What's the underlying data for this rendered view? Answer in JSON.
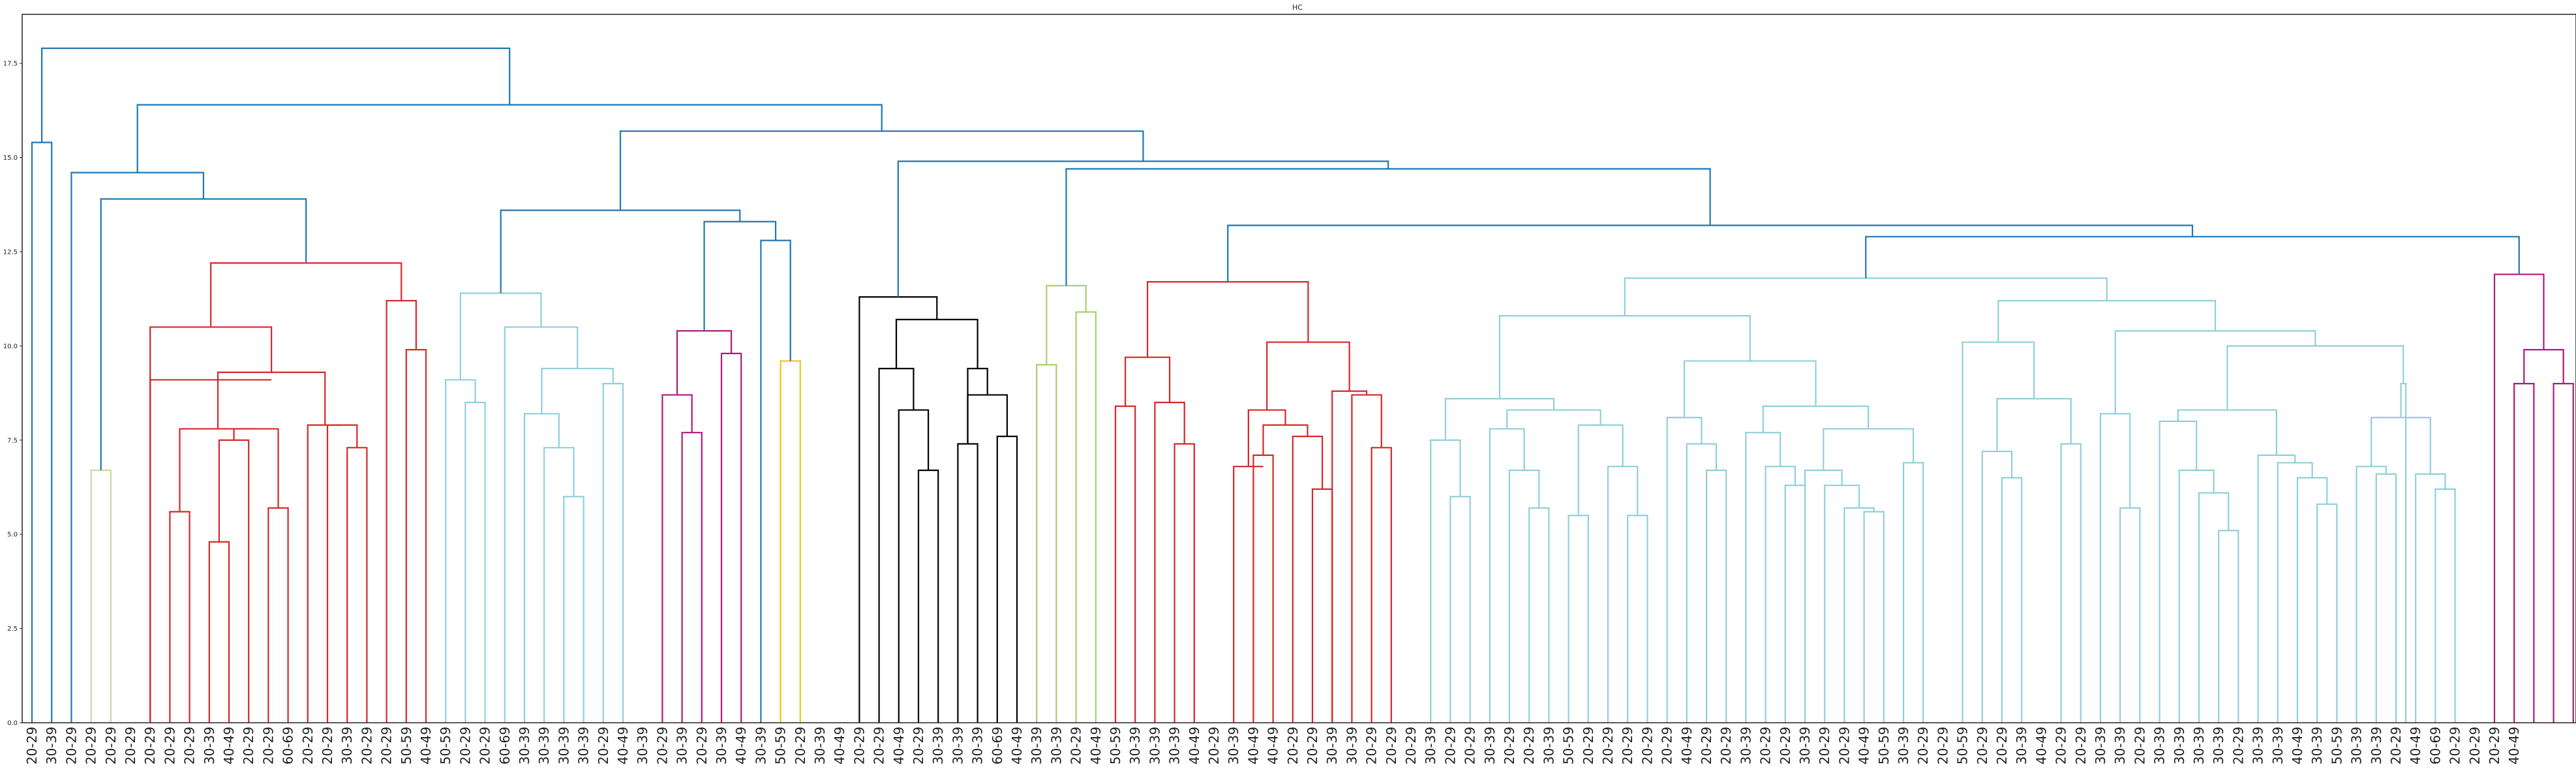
{
  "chart_data": {
    "type": "dendrogram",
    "title": "HC",
    "xlabel": "",
    "ylabel": "",
    "ylim": [
      0,
      18.8
    ],
    "yticks": [
      0.0,
      2.5,
      5.0,
      7.5,
      10.0,
      12.5,
      15.0,
      17.5
    ],
    "ytick_labels": [
      "0.0",
      "2.5",
      "5.0",
      "7.5",
      "10.0",
      "12.5",
      "15.0",
      "17.5"
    ],
    "grid": false,
    "colors": {
      "above": "#1f77b4",
      "red": "#d62728",
      "light": "#90cfdc",
      "magenta": "#b0197e",
      "gold": "#f0c419",
      "black": "#000000",
      "olive": "#c9d8a4",
      "green": "#a7cf6c"
    },
    "leaves": [
      "20-29",
      "30-39",
      "20-29",
      "20-29",
      "20-29",
      "20-29",
      "20-29",
      "20-29",
      "20-29",
      "30-39",
      "40-49",
      "20-29",
      "20-29",
      "60-69",
      "20-29",
      "20-29",
      "30-39",
      "20-29",
      "20-29",
      "50-59",
      "40-49",
      "50-59",
      "20-29",
      "20-29",
      "60-69",
      "30-39",
      "30-39",
      "30-39",
      "30-39",
      "20-29",
      "40-49",
      "30-39",
      "20-29",
      "30-39",
      "20-29",
      "30-39",
      "40-49",
      "30-39",
      "50-59",
      "20-29",
      "30-39",
      "40-49",
      "20-29",
      "20-29",
      "40-49",
      "20-29",
      "30-39",
      "30-39",
      "30-39",
      "60-69",
      "40-49",
      "30-39",
      "30-39",
      "20-29",
      "40-49",
      "50-59",
      "30-39",
      "30-39",
      "30-39",
      "40-49",
      "20-29",
      "30-39",
      "40-49",
      "40-49",
      "20-29",
      "20-29",
      "30-39",
      "30-39",
      "20-29",
      "20-29",
      "20-29",
      "30-39",
      "20-29",
      "20-29",
      "30-39",
      "20-29",
      "20-29",
      "30-39",
      "50-59",
      "20-29",
      "20-29",
      "20-29",
      "20-29",
      "20-29",
      "40-49",
      "20-29",
      "20-29",
      "30-39",
      "20-29",
      "20-29",
      "30-39",
      "20-29",
      "20-29",
      "40-49",
      "50-59",
      "30-39",
      "20-29",
      "20-29",
      "50-59",
      "20-29",
      "20-29",
      "30-39",
      "40-49",
      "20-29",
      "20-29",
      "30-39",
      "30-39",
      "20-29",
      "30-39",
      "30-39",
      "30-39",
      "30-39",
      "20-29",
      "30-39",
      "30-39",
      "40-49",
      "30-39",
      "50-59",
      "30-39",
      "30-39",
      "20-29",
      "40-49",
      "60-69",
      "20-29",
      "20-29",
      "20-29",
      "40-49"
    ],
    "links": [
      {
        "x1": 1,
        "x2": 2,
        "h": 15.4,
        "c": "above"
      },
      {
        "x1": 4,
        "x2": 5,
        "h": 6.7,
        "c": "olive"
      },
      {
        "x1": 8,
        "x2": 9,
        "h": 5.6,
        "c": "red"
      },
      {
        "x1": 10,
        "x2": 11,
        "h": 4.8,
        "c": "red"
      },
      {
        "x1": 10.5,
        "x2": 12,
        "h": 7.5,
        "c": "red"
      },
      {
        "x1": 13,
        "x2": 14,
        "h": 5.7,
        "c": "red"
      },
      {
        "x1": 11.25,
        "x2": 13.5,
        "h": 7.8,
        "c": "red"
      },
      {
        "x1": 17,
        "x2": 18,
        "h": 7.3,
        "c": "red"
      },
      {
        "x1": 16,
        "x2": 17.5,
        "h": 7.9,
        "c": "red"
      },
      {
        "x1": 8.5,
        "x2": 12.375,
        "h": 7.8,
        "c": "red"
      },
      {
        "x1": 15,
        "x2": 16.75,
        "h": 7.9,
        "c": "red"
      },
      {
        "x1": 10.4375,
        "x2": 15.875,
        "h": 9.3,
        "c": "red"
      },
      {
        "x1": 7,
        "x2": 13.15625,
        "h": 9.1,
        "c": "red"
      },
      {
        "x1": 7,
        "x2": 13.15625,
        "h": 10.5,
        "c": "red"
      },
      {
        "x1": 20,
        "x2": 21,
        "h": 9.9,
        "c": "red"
      },
      {
        "x1": 19,
        "x2": 20.5,
        "h": 11.2,
        "c": "red"
      },
      {
        "x1": 10.078125,
        "x2": 19.75,
        "h": 12.2,
        "c": "red"
      },
      {
        "x1": 4.5,
        "x2": 14.9140625,
        "h": 13.9,
        "c": "above"
      },
      {
        "x1": 3,
        "x2": 9.70703125,
        "h": 14.6,
        "c": "above"
      },
      {
        "x1": 23,
        "x2": 24,
        "h": 8.5,
        "c": "light"
      },
      {
        "x1": 22,
        "x2": 23.5,
        "h": 9.1,
        "c": "light"
      },
      {
        "x1": 28,
        "x2": 29,
        "h": 6.0,
        "c": "light"
      },
      {
        "x1": 27,
        "x2": 28.5,
        "h": 7.3,
        "c": "light"
      },
      {
        "x1": 26,
        "x2": 27.75,
        "h": 8.2,
        "c": "light"
      },
      {
        "x1": 30,
        "x2": 31,
        "h": 9.0,
        "c": "light"
      },
      {
        "x1": 26.875,
        "x2": 30.5,
        "h": 9.4,
        "c": "light"
      },
      {
        "x1": 25,
        "x2": 28.6875,
        "h": 10.5,
        "c": "light"
      },
      {
        "x1": 22.75,
        "x2": 26.84375,
        "h": 11.4,
        "c": "light"
      },
      {
        "x1": 34,
        "x2": 35,
        "h": 7.7,
        "c": "magenta"
      },
      {
        "x1": 33,
        "x2": 34.5,
        "h": 8.7,
        "c": "magenta"
      },
      {
        "x1": 36,
        "x2": 37,
        "h": 9.8,
        "c": "magenta"
      },
      {
        "x1": 33.75,
        "x2": 36.5,
        "h": 10.4,
        "c": "magenta"
      },
      {
        "x1": 39,
        "x2": 40,
        "h": 9.6,
        "c": "gold"
      },
      {
        "x1": 38,
        "x2": 39.5,
        "h": 12.8,
        "c": "above"
      },
      {
        "x1": 35.125,
        "x2": 38.75,
        "h": 13.3,
        "c": "above"
      },
      {
        "x1": 24.796875,
        "x2": 36.9375,
        "h": 13.6,
        "c": "above"
      },
      {
        "x1": 46,
        "x2": 47,
        "h": 6.7,
        "c": "black"
      },
      {
        "x1": 45,
        "x2": 46.5,
        "h": 8.3,
        "c": "black"
      },
      {
        "x1": 44,
        "x2": 45.75,
        "h": 9.4,
        "c": "black"
      },
      {
        "x1": 48,
        "x2": 49,
        "h": 7.4,
        "c": "black"
      },
      {
        "x1": 50,
        "x2": 51,
        "h": 7.6,
        "c": "black"
      },
      {
        "x1": 48.5,
        "x2": 50.5,
        "h": 8.7,
        "c": "black"
      },
      {
        "x1": 48.5,
        "x2": 49.5,
        "h": 9.4,
        "c": "black"
      },
      {
        "x1": 44.875,
        "x2": 49,
        "h": 10.7,
        "c": "black"
      },
      {
        "x1": 43,
        "x2": 46.9375,
        "h": 11.3,
        "c": "black"
      },
      {
        "x1": 52,
        "x2": 53,
        "h": 9.5,
        "c": "green"
      },
      {
        "x1": 54,
        "x2": 55,
        "h": 10.9,
        "c": "green"
      },
      {
        "x1": 52.5,
        "x2": 54.5,
        "h": 11.6,
        "c": "green"
      },
      {
        "x1": 56,
        "x2": 57,
        "h": 8.4,
        "c": "red"
      },
      {
        "x1": 59,
        "x2": 60,
        "h": 7.4,
        "c": "red"
      },
      {
        "x1": 58,
        "x2": 59.5,
        "h": 8.5,
        "c": "red"
      },
      {
        "x1": 56.5,
        "x2": 58.75,
        "h": 9.7,
        "c": "red"
      },
      {
        "x1": 63,
        "x2": 64,
        "h": 7.1,
        "c": "red"
      },
      {
        "x1": 62,
        "x2": 63.5,
        "h": 6.8,
        "c": "red"
      },
      {
        "x1": 66,
        "x2": 67,
        "h": 6.2,
        "c": "red"
      },
      {
        "x1": 65,
        "x2": 66.5,
        "h": 7.6,
        "c": "red"
      },
      {
        "x1": 63.5,
        "x2": 65.75,
        "h": 7.9,
        "c": "red"
      },
      {
        "x1": 62.75,
        "x2": 64.625,
        "h": 8.3,
        "c": "red"
      },
      {
        "x1": 69,
        "x2": 70,
        "h": 7.3,
        "c": "red"
      },
      {
        "x1": 68,
        "x2": 69.5,
        "h": 8.7,
        "c": "red"
      },
      {
        "x1": 67,
        "x2": 68.75,
        "h": 8.8,
        "c": "red"
      },
      {
        "x1": 63.6875,
        "x2": 67.875,
        "h": 10.1,
        "c": "red"
      },
      {
        "x1": 57.625,
        "x2": 65.78125,
        "h": 11.7,
        "c": "red"
      },
      {
        "x1": 73,
        "x2": 74,
        "h": 6.0,
        "c": "light"
      },
      {
        "x1": 72,
        "x2": 73.5,
        "h": 7.5,
        "c": "light"
      },
      {
        "x1": 77,
        "x2": 78,
        "h": 5.7,
        "c": "light"
      },
      {
        "x1": 76,
        "x2": 77.5,
        "h": 6.7,
        "c": "light"
      },
      {
        "x1": 75,
        "x2": 76.75,
        "h": 7.8,
        "c": "light"
      },
      {
        "x1": 79,
        "x2": 80,
        "h": 5.5,
        "c": "light"
      },
      {
        "x1": 82,
        "x2": 83,
        "h": 5.5,
        "c": "light"
      },
      {
        "x1": 81,
        "x2": 82.5,
        "h": 6.8,
        "c": "light"
      },
      {
        "x1": 79.5,
        "x2": 81.75,
        "h": 7.9,
        "c": "light"
      },
      {
        "x1": 75.875,
        "x2": 80.625,
        "h": 8.3,
        "c": "light"
      },
      {
        "x1": 72.75,
        "x2": 78.25,
        "h": 8.6,
        "c": "light"
      },
      {
        "x1": 86,
        "x2": 87,
        "h": 6.7,
        "c": "light"
      },
      {
        "x1": 85,
        "x2": 86.5,
        "h": 7.4,
        "c": "light"
      },
      {
        "x1": 84,
        "x2": 85.75,
        "h": 8.1,
        "c": "light"
      },
      {
        "x1": 90,
        "x2": 91,
        "h": 6.3,
        "c": "light"
      },
      {
        "x1": 89,
        "x2": 90.5,
        "h": 6.8,
        "c": "light"
      },
      {
        "x1": 88,
        "x2": 89.75,
        "h": 7.7,
        "c": "light"
      },
      {
        "x1": 94,
        "x2": 95,
        "h": 5.6,
        "c": "light"
      },
      {
        "x1": 93,
        "x2": 94.5,
        "h": 5.7,
        "c": "light"
      },
      {
        "x1": 92,
        "x2": 93.75,
        "h": 6.3,
        "c": "light"
      },
      {
        "x1": 91,
        "x2": 92.875,
        "h": 6.7,
        "c": "light"
      },
      {
        "x1": 96,
        "x2": 97,
        "h": 6.9,
        "c": "light"
      },
      {
        "x1": 91.9375,
        "x2": 96.5,
        "h": 7.8,
        "c": "light"
      },
      {
        "x1": 88.875,
        "x2": 94.21875,
        "h": 8.4,
        "c": "light"
      },
      {
        "x1": 84.875,
        "x2": 91.546875,
        "h": 9.6,
        "c": "light"
      },
      {
        "x1": 75.5,
        "x2": 88.2109375,
        "h": 10.8,
        "c": "light"
      },
      {
        "x1": 101,
        "x2": 102,
        "h": 6.5,
        "c": "light"
      },
      {
        "x1": 100,
        "x2": 101.5,
        "h": 7.2,
        "c": "light"
      },
      {
        "x1": 104,
        "x2": 105,
        "h": 7.4,
        "c": "light"
      },
      {
        "x1": 100.75,
        "x2": 104.5,
        "h": 8.6,
        "c": "light"
      },
      {
        "x1": 99,
        "x2": 102.625,
        "h": 10.1,
        "c": "light"
      },
      {
        "x1": 107,
        "x2": 108,
        "h": 5.7,
        "c": "light"
      },
      {
        "x1": 106,
        "x2": 107.5,
        "h": 8.2,
        "c": "light"
      },
      {
        "x1": 112,
        "x2": 113,
        "h": 5.1,
        "c": "light"
      },
      {
        "x1": 111,
        "x2": 112.5,
        "h": 6.1,
        "c": "light"
      },
      {
        "x1": 110,
        "x2": 111.75,
        "h": 6.7,
        "c": "light"
      },
      {
        "x1": 109,
        "x2": 110.875,
        "h": 8.0,
        "c": "light"
      },
      {
        "x1": 117,
        "x2": 118,
        "h": 5.8,
        "c": "light"
      },
      {
        "x1": 116,
        "x2": 117.5,
        "h": 6.5,
        "c": "light"
      },
      {
        "x1": 115,
        "x2": 116.75,
        "h": 6.9,
        "c": "light"
      },
      {
        "x1": 114,
        "x2": 115.875,
        "h": 7.1,
        "c": "light"
      },
      {
        "x1": 109.9375,
        "x2": 114.9375,
        "h": 8.3,
        "c": "light"
      },
      {
        "x1": 120,
        "x2": 121,
        "h": 6.6,
        "c": "light"
      },
      {
        "x1": 119,
        "x2": 120.5,
        "h": 6.8,
        "c": "light"
      },
      {
        "x1": 123,
        "x2": 124,
        "h": 6.2,
        "c": "light"
      },
      {
        "x1": 122,
        "x2": 123.5,
        "h": 6.6,
        "c": "light"
      },
      {
        "x1": 119.75,
        "x2": 122.75,
        "h": 8.1,
        "c": "light"
      },
      {
        "x1": 121.25,
        "x2": 121.5,
        "h": 9.0,
        "c": "light"
      },
      {
        "x1": 112.4375,
        "x2": 121.375,
        "h": 10.0,
        "c": "light"
      },
      {
        "x1": 106.75,
        "x2": 116.90625,
        "h": 10.4,
        "c": "light"
      },
      {
        "x1": 100.8125,
        "x2": 111.828125,
        "h": 11.2,
        "c": "light"
      },
      {
        "x1": 81.85546875,
        "x2": 106.3203125,
        "h": 11.8,
        "c": "light"
      },
      {
        "x1": 127,
        "x2": 128,
        "h": 9.0,
        "c": "magenta"
      },
      {
        "x1": 129,
        "x2": 130,
        "h": 9.0,
        "c": "magenta"
      },
      {
        "x1": 127.5,
        "x2": 129.5,
        "h": 9.9,
        "c": "magenta"
      },
      {
        "x1": 126,
        "x2": 128.5,
        "h": 11.9,
        "c": "magenta"
      },
      {
        "x1": 94.087890625,
        "x2": 127.25,
        "h": 12.9,
        "c": "above"
      },
      {
        "x1": 61.703125,
        "x2": 110.6689453125,
        "h": 13.2,
        "c": "above"
      },
      {
        "x1": 53.5,
        "x2": 86.18603515625,
        "h": 14.7,
        "c": "above"
      },
      {
        "x1": 44.96875,
        "x2": 69.843017578125,
        "h": 14.9,
        "c": "above"
      },
      {
        "x1": 30.8671875,
        "x2": 57.4058837890625,
        "h": 15.7,
        "c": "above"
      },
      {
        "x1": 6.353515625,
        "x2": 44.13653564453125,
        "h": 16.4,
        "c": "above"
      },
      {
        "x1": 1.5,
        "x2": 25.245025634765625,
        "h": 17.9,
        "c": "above"
      }
    ]
  }
}
